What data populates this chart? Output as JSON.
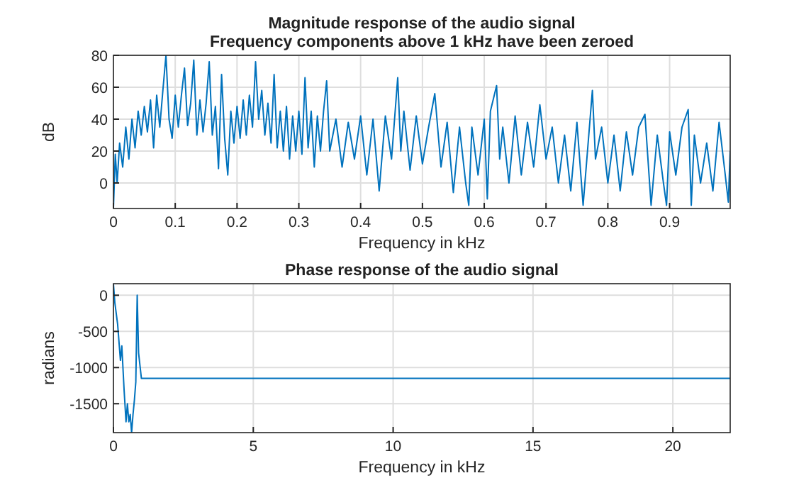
{
  "chart_data": [
    {
      "type": "line",
      "title": "Magnitude response of the audio signal",
      "subtitle": "Frequency components above 1 kHz have been zeroed",
      "xlabel": "Frequency in kHz",
      "ylabel": "dB",
      "grid": true,
      "xlim": [
        0,
        0.998
      ],
      "ylim": [
        -16,
        80
      ],
      "xticks": [
        0,
        0.1,
        0.2,
        0.3,
        0.4,
        0.5,
        0.6,
        0.7,
        0.8,
        0.9
      ],
      "yticks": [
        0,
        20,
        40,
        60,
        80
      ],
      "series": [
        {
          "color": "#0072bd",
          "x": [
            0,
            0.003,
            0.006,
            0.01,
            0.015,
            0.02,
            0.025,
            0.03,
            0.035,
            0.04,
            0.045,
            0.05,
            0.055,
            0.06,
            0.065,
            0.07,
            0.075,
            0.08,
            0.085,
            0.09,
            0.095,
            0.1,
            0.105,
            0.11,
            0.115,
            0.12,
            0.125,
            0.13,
            0.135,
            0.14,
            0.145,
            0.15,
            0.155,
            0.16,
            0.165,
            0.17,
            0.175,
            0.18,
            0.185,
            0.19,
            0.195,
            0.2,
            0.205,
            0.21,
            0.215,
            0.22,
            0.225,
            0.23,
            0.235,
            0.24,
            0.245,
            0.25,
            0.255,
            0.26,
            0.265,
            0.27,
            0.275,
            0.28,
            0.285,
            0.29,
            0.295,
            0.3,
            0.305,
            0.31,
            0.315,
            0.32,
            0.325,
            0.33,
            0.335,
            0.34,
            0.345,
            0.35,
            0.36,
            0.37,
            0.38,
            0.39,
            0.4,
            0.41,
            0.42,
            0.43,
            0.44,
            0.45,
            0.46,
            0.465,
            0.47,
            0.48,
            0.49,
            0.5,
            0.51,
            0.52,
            0.53,
            0.54,
            0.55,
            0.56,
            0.57,
            0.575,
            0.58,
            0.59,
            0.6,
            0.605,
            0.61,
            0.62,
            0.625,
            0.63,
            0.64,
            0.65,
            0.66,
            0.67,
            0.68,
            0.69,
            0.7,
            0.71,
            0.72,
            0.73,
            0.74,
            0.75,
            0.76,
            0.775,
            0.78,
            0.79,
            0.8,
            0.81,
            0.82,
            0.83,
            0.84,
            0.85,
            0.86,
            0.87,
            0.88,
            0.89,
            0.895,
            0.9,
            0.91,
            0.92,
            0.93,
            0.935,
            0.94,
            0.95,
            0.96,
            0.97,
            0.98,
            0.99,
            0.995,
            0.998
          ],
          "values": [
            -16,
            18,
            0,
            25,
            10,
            35,
            15,
            40,
            22,
            45,
            30,
            48,
            32,
            52,
            22,
            55,
            35,
            58,
            80,
            40,
            28,
            55,
            35,
            55,
            72,
            36,
            50,
            77,
            30,
            52,
            32,
            50,
            76,
            30,
            48,
            9,
            68,
            28,
            5,
            45,
            25,
            48,
            28,
            52,
            30,
            55,
            35,
            76,
            40,
            58,
            30,
            50,
            25,
            68,
            22,
            45,
            20,
            48,
            15,
            42,
            20,
            45,
            18,
            66,
            22,
            45,
            10,
            42,
            20,
            45,
            64,
            20,
            40,
            10,
            38,
            15,
            42,
            5,
            40,
            -5,
            42,
            15,
            66,
            20,
            45,
            8,
            42,
            12,
            35,
            56,
            10,
            38,
            -6,
            35,
            0,
            -14,
            35,
            5,
            40,
            -10,
            45,
            61,
            15,
            35,
            0,
            42,
            5,
            38,
            10,
            49,
            15,
            35,
            0,
            30,
            -5,
            38,
            -14,
            58,
            15,
            35,
            0,
            30,
            -5,
            32,
            5,
            35,
            43,
            -14,
            30,
            0,
            -14,
            32,
            5,
            35,
            46,
            -14,
            30,
            0,
            25,
            -5,
            38,
            5,
            -12,
            20
          ]
        }
      ]
    },
    {
      "type": "line",
      "title": "Phase response of the audio signal",
      "xlabel": "Frequency in kHz",
      "ylabel": "radians",
      "grid": true,
      "xlim": [
        0,
        22.05
      ],
      "ylim": [
        -1900,
        160
      ],
      "xticks": [
        0,
        5,
        10,
        15,
        20
      ],
      "yticks": [
        -1500,
        -1000,
        -500,
        0
      ],
      "series": [
        {
          "color": "#0072bd",
          "x": [
            0,
            0.05,
            0.15,
            0.25,
            0.3,
            0.38,
            0.45,
            0.5,
            0.55,
            0.6,
            0.65,
            0.7,
            0.75,
            0.8,
            0.85,
            0.9,
            1.0,
            22.05
          ],
          "values": [
            160,
            -100,
            -400,
            -900,
            -700,
            -1300,
            -1750,
            -1500,
            -1750,
            -1650,
            -1900,
            -1650,
            -1450,
            -1200,
            0,
            -800,
            -1150,
            -1150
          ]
        }
      ]
    }
  ]
}
